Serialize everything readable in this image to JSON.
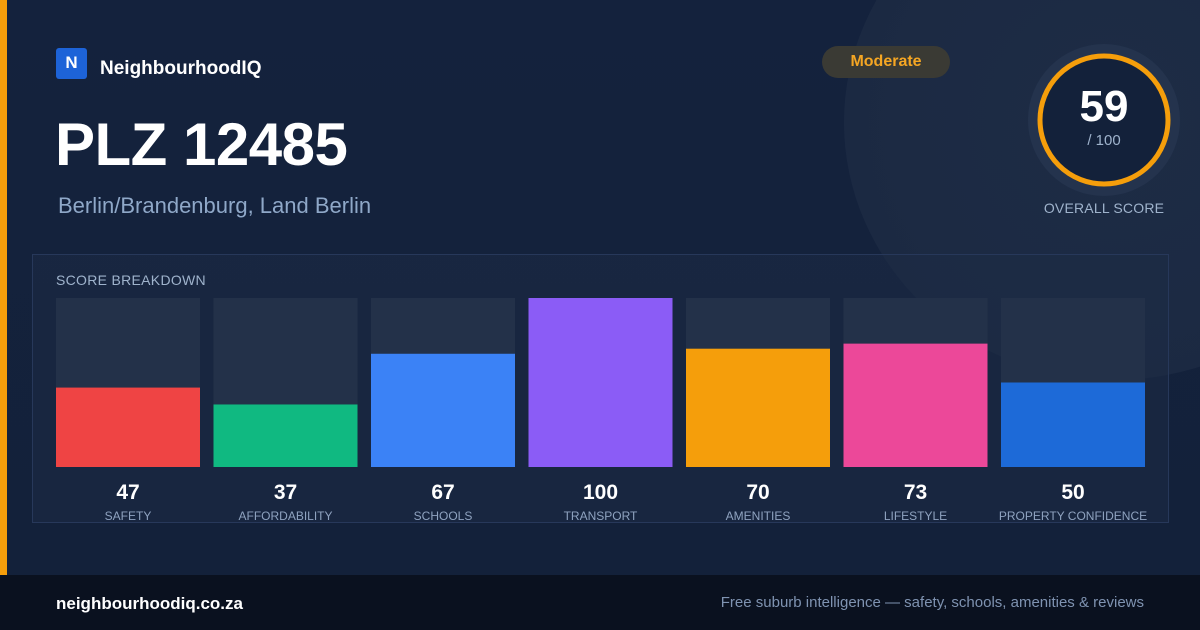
{
  "brand": {
    "logo_letter": "N",
    "name": "NeighbourhoodIQ"
  },
  "badge": {
    "label": "Moderate",
    "color": "#f5a623"
  },
  "header": {
    "title": "PLZ 12485",
    "subtitle": "Berlin/Brandenburg, Land Berlin"
  },
  "overall": {
    "score": "59",
    "max_label": "/ 100",
    "label": "OVERALL SCORE",
    "score_value": 59,
    "max_value": 100,
    "ring_color": "#f59e0b"
  },
  "panel": {
    "title": "SCORE BREAKDOWN"
  },
  "chart_data": {
    "type": "bar",
    "title": "SCORE BREAKDOWN",
    "categories": [
      "SAFETY",
      "AFFORDABILITY",
      "SCHOOLS",
      "TRANSPORT",
      "AMENITIES",
      "LIFESTYLE",
      "PROPERTY CONFIDENCE"
    ],
    "values": [
      47,
      37,
      67,
      100,
      70,
      73,
      50
    ],
    "colors": [
      "#ef4444",
      "#10b981",
      "#3b82f6",
      "#8b5cf6",
      "#f59e0b",
      "#ec4899",
      "#1d6ad8"
    ],
    "ylim": [
      0,
      100
    ],
    "grid": false
  },
  "footer": {
    "url": "neighbourhoodiq.co.za",
    "tagline": "Free suburb intelligence — safety, schools, amenities & reviews"
  }
}
